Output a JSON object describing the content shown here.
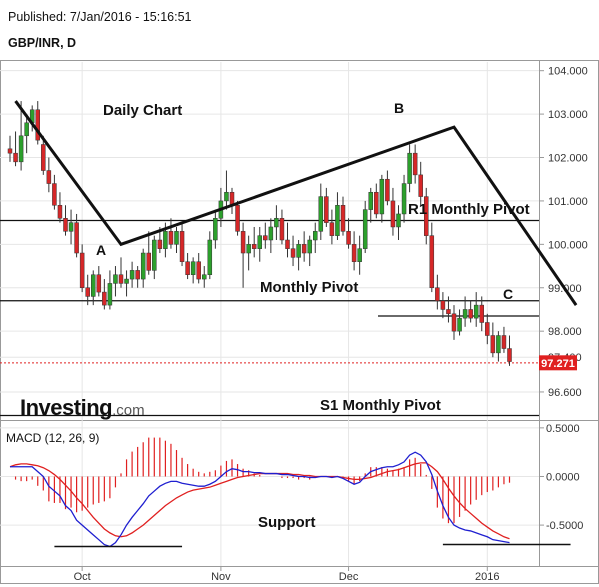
{
  "header": {
    "published": "Published: 7/Jan/2016 - 15:16:51",
    "symbol": "GBP/INR, D"
  },
  "watermark": {
    "brand": "Investing",
    "domain": ".com"
  },
  "colors": {
    "up": "#2ca02c",
    "down": "#d62728",
    "macd": "#1f1fd0",
    "signal": "#e02020",
    "last_price": "#e02020"
  },
  "chart_data": [
    {
      "type": "candlestick",
      "title": "",
      "ylim": [
        96.0,
        104.2
      ],
      "y_ticks": [
        "104.000",
        "103.000",
        "102.000",
        "101.000",
        "100.000",
        "99.000",
        "98.000",
        "97.400",
        "96.600"
      ],
      "x_ticks": [
        "Oct",
        "Nov",
        "Dec",
        "2016"
      ],
      "last_price": "97.271",
      "annotations": {
        "daily_chart": "Daily Chart",
        "r1": "R1 Monthly Pivot",
        "monthly": "Monthly Pivot",
        "s1": "S1 Monthly Pivot",
        "point_a": "A",
        "point_b": "B",
        "point_c": "C"
      },
      "levels": {
        "r1": 100.55,
        "monthly": 98.7,
        "short": 98.35,
        "s1": 95.95
      },
      "trendline": [
        [
          1,
          103.3
        ],
        [
          20,
          100.0
        ],
        [
          80,
          102.7
        ],
        [
          102,
          98.6
        ]
      ],
      "candles": [
        [
          102.2,
          102.5,
          101.9,
          102.1
        ],
        [
          102.1,
          102.6,
          101.8,
          101.9
        ],
        [
          101.9,
          103.3,
          101.7,
          102.5
        ],
        [
          102.5,
          103.0,
          102.1,
          102.8
        ],
        [
          102.8,
          103.2,
          102.6,
          103.1
        ],
        [
          103.1,
          103.3,
          102.3,
          102.4
        ],
        [
          102.3,
          102.5,
          101.6,
          101.7
        ],
        [
          101.7,
          102.0,
          101.2,
          101.4
        ],
        [
          101.4,
          101.6,
          100.8,
          100.9
        ],
        [
          100.9,
          101.2,
          100.5,
          100.6
        ],
        [
          100.6,
          100.9,
          100.2,
          100.3
        ],
        [
          100.3,
          100.8,
          100.0,
          100.5
        ],
        [
          100.5,
          100.7,
          99.7,
          99.8
        ],
        [
          99.8,
          100.0,
          98.9,
          99.0
        ],
        [
          99.0,
          99.3,
          98.6,
          98.8
        ],
        [
          98.8,
          99.4,
          98.6,
          99.3
        ],
        [
          99.3,
          99.5,
          98.8,
          98.9
        ],
        [
          98.9,
          99.2,
          98.5,
          98.6
        ],
        [
          98.6,
          99.4,
          98.5,
          99.1
        ],
        [
          99.1,
          99.5,
          98.8,
          99.3
        ],
        [
          99.3,
          99.7,
          99.0,
          99.1
        ],
        [
          99.1,
          99.4,
          98.8,
          99.2
        ],
        [
          99.2,
          99.6,
          99.0,
          99.4
        ],
        [
          99.4,
          99.5,
          99.0,
          99.2
        ],
        [
          99.2,
          99.9,
          99.0,
          99.8
        ],
        [
          99.8,
          100.3,
          99.3,
          99.4
        ],
        [
          99.4,
          100.2,
          99.2,
          100.1
        ],
        [
          100.1,
          100.4,
          99.8,
          99.9
        ],
        [
          99.9,
          100.5,
          99.7,
          100.3
        ],
        [
          100.3,
          100.6,
          99.9,
          100.0
        ],
        [
          100.0,
          100.4,
          99.8,
          100.3
        ],
        [
          100.3,
          100.5,
          99.5,
          99.6
        ],
        [
          99.6,
          99.8,
          99.2,
          99.3
        ],
        [
          99.3,
          99.7,
          99.1,
          99.6
        ],
        [
          99.6,
          99.8,
          99.1,
          99.2
        ],
        [
          99.2,
          99.5,
          99.0,
          99.3
        ],
        [
          99.3,
          100.3,
          99.2,
          100.1
        ],
        [
          100.1,
          100.8,
          99.9,
          100.6
        ],
        [
          100.6,
          101.3,
          100.4,
          101.0
        ],
        [
          101.0,
          101.7,
          100.8,
          101.2
        ],
        [
          101.2,
          101.3,
          100.7,
          100.9
        ],
        [
          100.9,
          101.0,
          100.2,
          100.3
        ],
        [
          100.3,
          100.5,
          99.0,
          99.8
        ],
        [
          99.8,
          100.2,
          99.4,
          100.0
        ],
        [
          100.0,
          100.4,
          99.7,
          99.9
        ],
        [
          99.9,
          100.4,
          99.6,
          100.2
        ],
        [
          100.2,
          100.5,
          99.9,
          100.1
        ],
        [
          100.1,
          100.6,
          99.8,
          100.4
        ],
        [
          100.4,
          100.9,
          100.1,
          100.6
        ],
        [
          100.6,
          100.8,
          100.0,
          100.1
        ],
        [
          100.1,
          100.5,
          99.7,
          99.9
        ],
        [
          99.9,
          100.2,
          99.5,
          99.7
        ],
        [
          99.7,
          100.1,
          99.4,
          100.0
        ],
        [
          100.0,
          100.3,
          99.6,
          99.8
        ],
        [
          99.8,
          100.2,
          99.5,
          100.1
        ],
        [
          100.1,
          100.5,
          99.8,
          100.3
        ],
        [
          100.3,
          101.4,
          100.1,
          101.1
        ],
        [
          101.1,
          101.3,
          100.4,
          100.5
        ],
        [
          100.5,
          100.8,
          100.0,
          100.2
        ],
        [
          100.2,
          101.2,
          100.1,
          100.9
        ],
        [
          100.9,
          101.1,
          100.2,
          100.3
        ],
        [
          100.3,
          100.6,
          99.9,
          100.0
        ],
        [
          100.0,
          100.3,
          99.4,
          99.6
        ],
        [
          99.6,
          100.2,
          99.3,
          99.9
        ],
        [
          99.9,
          101.0,
          99.8,
          100.8
        ],
        [
          100.8,
          101.3,
          100.5,
          101.2
        ],
        [
          101.2,
          101.4,
          100.6,
          100.7
        ],
        [
          100.7,
          101.6,
          100.5,
          101.5
        ],
        [
          101.5,
          101.7,
          100.9,
          101.0
        ],
        [
          101.0,
          101.3,
          100.2,
          100.4
        ],
        [
          100.4,
          100.9,
          100.1,
          100.7
        ],
        [
          100.7,
          101.6,
          100.5,
          101.4
        ],
        [
          101.4,
          102.3,
          101.2,
          102.1
        ],
        [
          102.1,
          102.3,
          101.4,
          101.6
        ],
        [
          101.6,
          101.9,
          100.9,
          101.1
        ],
        [
          101.1,
          101.3,
          100.0,
          100.2
        ],
        [
          100.2,
          100.5,
          98.9,
          99.0
        ],
        [
          99.0,
          99.3,
          98.5,
          98.7
        ],
        [
          98.7,
          98.9,
          98.3,
          98.5
        ],
        [
          98.5,
          98.8,
          98.2,
          98.4
        ],
        [
          98.4,
          98.6,
          97.8,
          98.0
        ],
        [
          98.0,
          98.5,
          97.9,
          98.3
        ],
        [
          98.3,
          98.8,
          98.1,
          98.5
        ],
        [
          98.5,
          98.7,
          98.2,
          98.3
        ],
        [
          98.3,
          98.9,
          98.1,
          98.6
        ],
        [
          98.6,
          98.8,
          98.0,
          98.2
        ],
        [
          98.2,
          98.4,
          97.7,
          97.9
        ],
        [
          97.9,
          98.2,
          97.4,
          97.5
        ],
        [
          97.5,
          98.0,
          97.3,
          97.9
        ],
        [
          97.9,
          98.1,
          97.5,
          97.6
        ],
        [
          97.6,
          97.9,
          97.2,
          97.3
        ]
      ]
    },
    {
      "type": "macd",
      "title": "MACD (12, 26, 9)",
      "ylim": [
        -0.9,
        0.55
      ],
      "y_ticks": [
        "0.5000",
        "0.0000",
        "-0.5000"
      ],
      "support_label": "Support",
      "macd": [
        0.1,
        0.1,
        0.1,
        0.1,
        0.1,
        0.05,
        0.0,
        -0.1,
        -0.15,
        -0.2,
        -0.3,
        -0.35,
        -0.45,
        -0.5,
        -0.55,
        -0.6,
        -0.65,
        -0.7,
        -0.72,
        -0.68,
        -0.6,
        -0.5,
        -0.42,
        -0.35,
        -0.28,
        -0.2,
        -0.15,
        -0.1,
        -0.07,
        -0.05,
        -0.05,
        -0.07,
        -0.08,
        -0.09,
        -0.1,
        -0.1,
        -0.08,
        -0.05,
        0.0,
        0.05,
        0.08,
        0.07,
        0.05,
        0.05,
        0.04,
        0.04,
        0.03,
        0.03,
        0.03,
        0.02,
        0.02,
        0.01,
        0.0,
        0.0,
        -0.01,
        -0.01,
        0.0,
        0.0,
        -0.01,
        0.0,
        -0.02,
        -0.05,
        -0.08,
        -0.06,
        0.0,
        0.05,
        0.07,
        0.09,
        0.1,
        0.1,
        0.12,
        0.15,
        0.22,
        0.25,
        0.22,
        0.15,
        0.02,
        -0.15,
        -0.3,
        -0.42,
        -0.5,
        -0.53,
        -0.55,
        -0.56,
        -0.58,
        -0.6,
        -0.62,
        -0.65,
        -0.66,
        -0.67,
        -0.68
      ],
      "signal": [
        0.1,
        0.12,
        0.13,
        0.13,
        0.12,
        0.11,
        0.09,
        0.06,
        0.02,
        -0.03,
        -0.09,
        -0.15,
        -0.22,
        -0.28,
        -0.35,
        -0.42,
        -0.48,
        -0.54,
        -0.58,
        -0.61,
        -0.62,
        -0.61,
        -0.58,
        -0.54,
        -0.5,
        -0.45,
        -0.4,
        -0.35,
        -0.3,
        -0.26,
        -0.22,
        -0.19,
        -0.16,
        -0.14,
        -0.13,
        -0.12,
        -0.11,
        -0.09,
        -0.07,
        -0.05,
        -0.03,
        -0.01,
        0.0,
        0.01,
        0.02,
        0.03,
        0.03,
        0.03,
        0.03,
        0.03,
        0.03,
        0.02,
        0.02,
        0.01,
        0.01,
        0.0,
        0.0,
        0.0,
        0.0,
        0.0,
        -0.01,
        -0.02,
        -0.03,
        -0.03,
        -0.02,
        -0.01,
        0.01,
        0.03,
        0.05,
        0.06,
        0.07,
        0.09,
        0.11,
        0.13,
        0.14,
        0.14,
        0.1,
        0.05,
        -0.03,
        -0.12,
        -0.2,
        -0.27,
        -0.33,
        -0.38,
        -0.43,
        -0.48,
        -0.52,
        -0.56,
        -0.59,
        -0.62,
        -0.64
      ],
      "support_segments": [
        [
          8,
          -0.72,
          31,
          -0.72
        ],
        [
          78,
          -0.7,
          101,
          -0.7
        ]
      ]
    }
  ]
}
